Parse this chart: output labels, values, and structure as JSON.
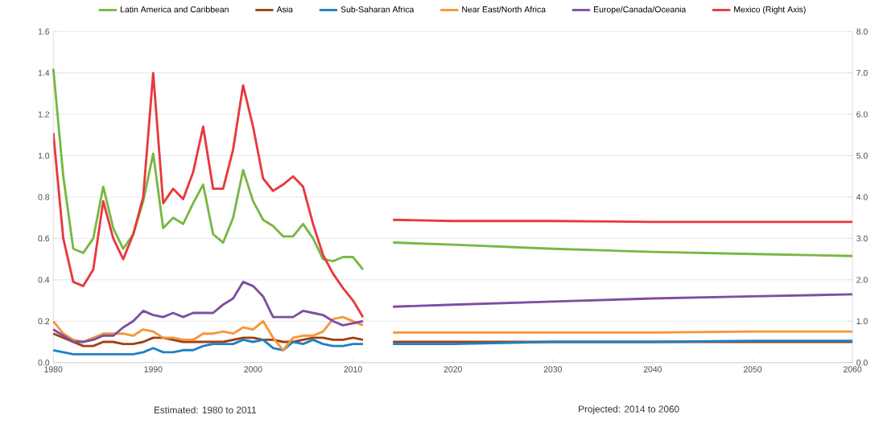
{
  "chart_data": {
    "type": "line",
    "x": [
      1980,
      1981,
      1982,
      1983,
      1984,
      1985,
      1986,
      1987,
      1988,
      1989,
      1990,
      1991,
      1992,
      1993,
      1994,
      1995,
      1996,
      1997,
      1998,
      1999,
      2000,
      2001,
      2002,
      2003,
      2004,
      2005,
      2006,
      2007,
      2008,
      2009,
      2010,
      2011,
      2012,
      2014,
      2020,
      2030,
      2040,
      2050,
      2060
    ],
    "series": [
      {
        "name": "Latin America and Caribbean",
        "color": "#77b843",
        "values": [
          1.42,
          0.9,
          0.55,
          0.53,
          0.6,
          0.85,
          0.65,
          0.55,
          0.62,
          0.78,
          1.01,
          0.65,
          0.7,
          0.67,
          0.77,
          0.86,
          0.62,
          0.58,
          0.7,
          0.93,
          0.78,
          0.69,
          0.66,
          0.61,
          0.61,
          0.67,
          0.6,
          0.5,
          0.49,
          0.51,
          0.51,
          0.45,
          null,
          0.58,
          0.57,
          0.55,
          0.535,
          0.525,
          0.515
        ]
      },
      {
        "name": "Asia",
        "color": "#a0400f",
        "x": [
          1980,
          1981,
          1982,
          1983,
          1984,
          1985,
          1986,
          1987,
          1988,
          1989,
          1990,
          1991,
          1992,
          1993,
          1994,
          1995,
          1996,
          1997,
          1998,
          1999,
          2000,
          2001,
          2002,
          2003,
          2004,
          2005,
          2006,
          2007,
          2008,
          2009,
          2010,
          2011,
          2012,
          2014,
          2020,
          2050,
          2060
        ],
        "values": [
          0.14,
          0.12,
          0.1,
          0.08,
          0.08,
          0.1,
          0.1,
          0.09,
          0.09,
          0.1,
          0.12,
          0.12,
          0.11,
          0.1,
          0.1,
          0.1,
          0.1,
          0.1,
          0.11,
          0.12,
          0.12,
          0.11,
          0.11,
          0.1,
          0.1,
          0.11,
          0.12,
          0.12,
          0.11,
          0.11,
          0.12,
          0.11,
          null,
          0.1,
          0.1,
          0.1,
          0.1
        ]
      },
      {
        "name": "Sub-Saharan Africa",
        "color": "#1f80c4",
        "values": [
          0.06,
          0.05,
          0.04,
          0.04,
          0.04,
          0.04,
          0.04,
          0.04,
          0.04,
          0.05,
          0.07,
          0.05,
          0.05,
          0.06,
          0.06,
          0.08,
          0.09,
          0.09,
          0.09,
          0.11,
          0.1,
          0.11,
          0.07,
          0.06,
          0.1,
          0.09,
          0.11,
          0.09,
          0.08,
          0.08,
          0.09,
          0.09,
          null,
          0.09,
          0.09,
          0.1,
          0.1,
          0.105,
          0.105
        ]
      },
      {
        "name": "Near East/North Africa",
        "color": "#f7953a",
        "values": [
          0.2,
          0.14,
          0.11,
          0.1,
          0.12,
          0.14,
          0.14,
          0.14,
          0.13,
          0.16,
          0.15,
          0.12,
          0.12,
          0.11,
          0.11,
          0.14,
          0.14,
          0.15,
          0.14,
          0.17,
          0.16,
          0.2,
          0.12,
          0.06,
          0.12,
          0.13,
          0.13,
          0.15,
          0.21,
          0.22,
          0.2,
          0.18,
          null,
          0.145,
          0.145,
          0.145,
          0.145,
          0.15,
          0.15
        ]
      },
      {
        "name": "Europe/Canada/Oceania",
        "color": "#7f4ea0",
        "values": [
          0.16,
          0.13,
          0.1,
          0.1,
          0.11,
          0.13,
          0.13,
          0.17,
          0.2,
          0.25,
          0.23,
          0.22,
          0.24,
          0.22,
          0.24,
          0.24,
          0.24,
          0.28,
          0.31,
          0.39,
          0.37,
          0.32,
          0.22,
          0.22,
          0.22,
          0.25,
          0.24,
          0.23,
          0.2,
          0.18,
          0.19,
          0.2,
          null,
          0.27,
          0.28,
          0.295,
          0.31,
          0.32,
          0.33
        ]
      },
      {
        "name": "Mexico (Right Axis)",
        "color": "#e8393d",
        "axis": "y2",
        "values": [
          5.55,
          3.0,
          1.95,
          1.85,
          2.25,
          3.9,
          3.0,
          2.5,
          3.1,
          4.0,
          7.0,
          3.85,
          4.2,
          3.95,
          4.6,
          5.7,
          4.2,
          4.2,
          5.15,
          6.7,
          5.7,
          4.45,
          4.15,
          4.3,
          4.5,
          4.25,
          3.35,
          2.6,
          2.15,
          1.8,
          1.5,
          1.1,
          null,
          3.45,
          3.42,
          3.42,
          3.4,
          3.4,
          3.4
        ]
      }
    ],
    "xlim": [
      1980,
      2060
    ],
    "xticks": [
      1980,
      1990,
      2000,
      2010,
      2020,
      2030,
      2040,
      2050,
      2060
    ],
    "ylim": [
      0,
      1.6
    ],
    "yticks": [
      {
        "value": 0,
        "label": "0.0"
      },
      {
        "value": 0.2,
        "label": "0.2"
      },
      {
        "value": 0.4,
        "label": "0.4"
      },
      {
        "value": 0.6,
        "label": "0.6"
      },
      {
        "value": 0.8,
        "label": "0.8"
      },
      {
        "value": 1.0,
        "label": "1.0"
      },
      {
        "value": 1.2,
        "label": "1.2"
      },
      {
        "value": 1.4,
        "label": "1.4"
      },
      {
        "value": 1.6,
        "label": "1.6"
      }
    ],
    "y2lim": [
      0,
      8
    ],
    "y2ticks": [
      {
        "value": 0,
        "label": "0.0"
      },
      {
        "value": 1,
        "label": "1.0"
      },
      {
        "value": 2,
        "label": "2.0"
      },
      {
        "value": 3,
        "label": "3.0"
      },
      {
        "value": 4,
        "label": "4.0"
      },
      {
        "value": 5,
        "label": "5.0"
      },
      {
        "value": 6,
        "label": "6.0"
      },
      {
        "value": 7,
        "label": "7.0"
      },
      {
        "value": 8,
        "label": "8.0"
      }
    ],
    "annotations": [
      "Estimated: 1980 to 2011",
      "Projected: 2014 to 2060"
    ],
    "grid": "y",
    "legend": "top",
    "marker": "none",
    "line_style": "solid"
  }
}
